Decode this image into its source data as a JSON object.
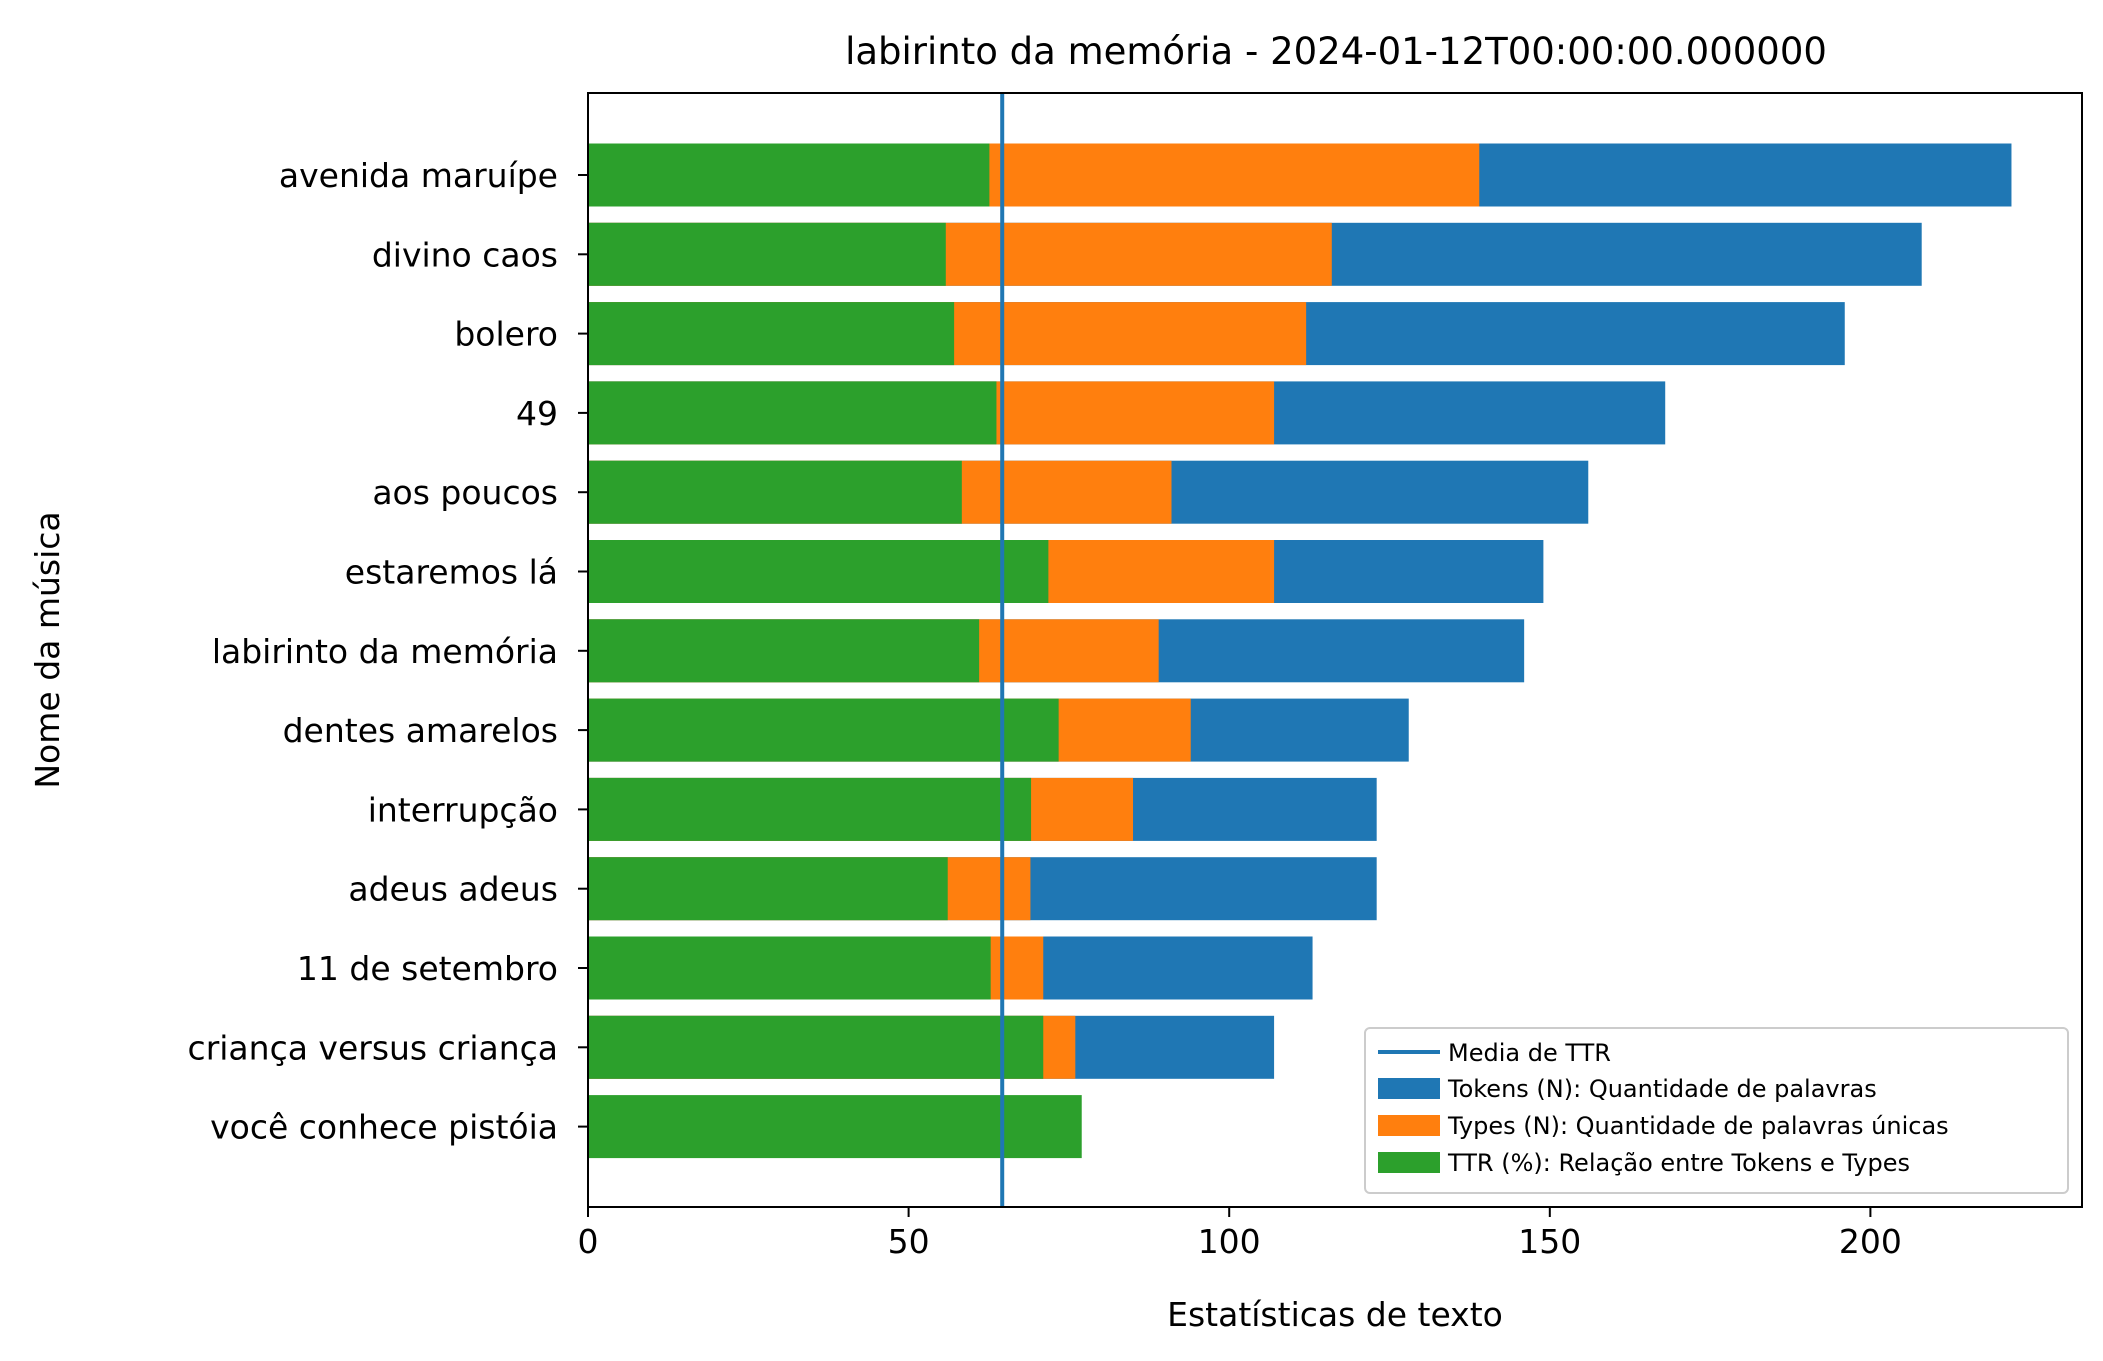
{
  "chart_data": {
    "type": "bar",
    "orientation": "horizontal",
    "title": "labirinto da memória - 2024-01-12T00:00:00.000000",
    "xlabel": "Estatísticas de texto",
    "ylabel": "Nome da música",
    "xlim": [
      0,
      233
    ],
    "xticks": [
      0,
      50,
      100,
      150,
      200
    ],
    "grid": false,
    "legend_position": "lower-right",
    "categories": [
      "avenida maruípe",
      "divino caos",
      "bolero",
      "49",
      "aos poucos",
      "estaremos lá",
      "labirinto da memória",
      "dentes amarelos",
      "interrupção",
      "adeus adeus",
      "11 de setembro",
      "criança versus criança",
      "você conhece pistóia"
    ],
    "series": [
      {
        "name": "Tokens (N): Quantidade de palavras",
        "color": "#1f77b4",
        "values": [
          222,
          208,
          196,
          168,
          156,
          149,
          146,
          128,
          123,
          123,
          113,
          107,
          0
        ]
      },
      {
        "name": "Types (N): Quantidade de palavras únicas",
        "color": "#ff7f0e",
        "values": [
          139,
          116,
          112,
          107,
          91,
          107,
          89,
          94,
          85,
          69,
          71,
          76,
          0
        ]
      },
      {
        "name": "TTR (%): Relação entre Tokens e Types",
        "color": "#2ca02c",
        "values": [
          62.6,
          55.8,
          57.1,
          63.7,
          58.3,
          71.8,
          61.0,
          73.4,
          69.1,
          56.1,
          62.8,
          71.0,
          77.0
        ]
      }
    ],
    "reference_line": {
      "name": "Media de TTR",
      "value": 64.6,
      "color": "#1f77b4"
    }
  }
}
